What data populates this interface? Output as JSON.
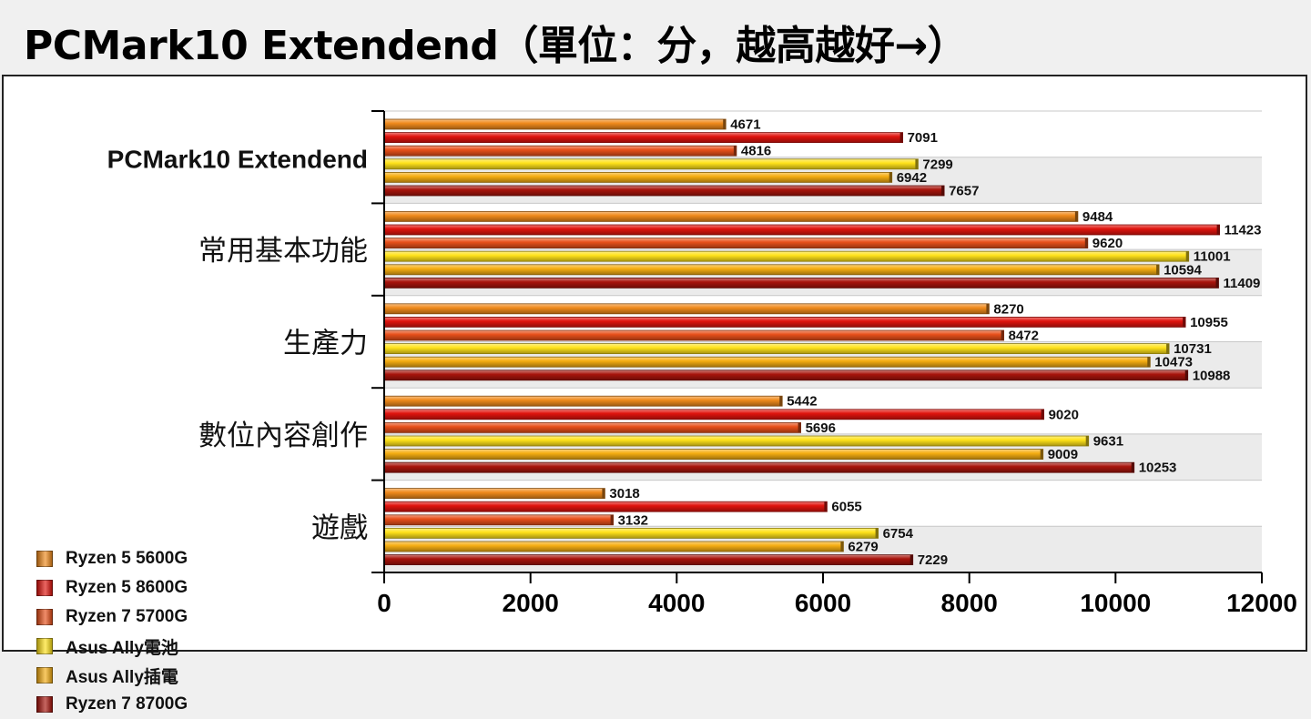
{
  "title": "PCMark10 Extendend（單位：分，越高越好→）",
  "chart_data": {
    "type": "bar",
    "orientation": "horizontal",
    "categories": [
      "PCMark10 Extendend",
      "常用基本功能",
      "生產力",
      "數位內容創作",
      "遊戲"
    ],
    "series": [
      {
        "name": "Ryzen 5 5600G",
        "color": "#f08a1c",
        "values": [
          4671,
          9484,
          8270,
          5442,
          3018
        ]
      },
      {
        "name": "Ryzen 5 8600G",
        "color": "#e0140e",
        "values": [
          7091,
          11423,
          10955,
          9020,
          6055
        ]
      },
      {
        "name": "Ryzen 7 5700G",
        "color": "#e8501a",
        "values": [
          4816,
          9620,
          8472,
          5696,
          3132
        ]
      },
      {
        "name": "Asus Ally電池",
        "color": "#ffe21a",
        "values": [
          7299,
          11001,
          10731,
          9631,
          6754
        ]
      },
      {
        "name": "Asus Ally插電",
        "color": "#f6ae12",
        "values": [
          6942,
          10594,
          10473,
          9009,
          6279
        ]
      },
      {
        "name": "Ryzen 7 8700G",
        "color": "#a8140c",
        "values": [
          7657,
          11409,
          10988,
          10253,
          7229
        ]
      }
    ],
    "xlim": [
      0,
      12000
    ],
    "xticks": [
      "0",
      "2000",
      "4000",
      "6000",
      "8000",
      "10000",
      "12000"
    ],
    "grid": true,
    "data_labels": true,
    "legend_position": "bottom-left"
  }
}
